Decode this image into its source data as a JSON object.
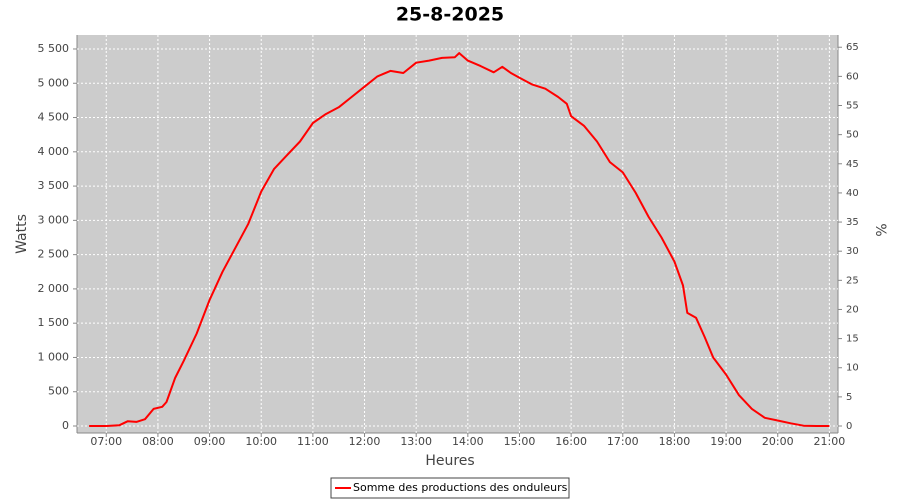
{
  "chart_data": {
    "type": "line",
    "title": "25-8-2025",
    "x_label": "Heures",
    "y_label": "Watts",
    "y2_label": "%",
    "x": [
      "06:40",
      "07:00",
      "07:15",
      "07:25",
      "07:35",
      "07:45",
      "07:55",
      "08:05",
      "08:10",
      "08:20",
      "08:30",
      "08:45",
      "09:00",
      "09:15",
      "09:30",
      "09:45",
      "10:00",
      "10:15",
      "10:30",
      "10:45",
      "11:00",
      "11:15",
      "11:30",
      "11:45",
      "12:00",
      "12:15",
      "12:30",
      "12:45",
      "13:00",
      "13:15",
      "13:30",
      "13:45",
      "13:50",
      "14:00",
      "14:15",
      "14:30",
      "14:40",
      "14:50",
      "15:00",
      "15:15",
      "15:30",
      "15:45",
      "15:55",
      "16:00",
      "16:15",
      "16:30",
      "16:45",
      "17:00",
      "17:15",
      "17:30",
      "17:45",
      "18:00",
      "18:10",
      "18:15",
      "18:25",
      "18:35",
      "18:45",
      "19:00",
      "19:15",
      "19:30",
      "19:45",
      "20:00",
      "20:15",
      "20:30",
      "20:45",
      "21:00"
    ],
    "series": [
      {
        "name": "Somme des productions des onduleurs",
        "color": "#ff0000",
        "values": [
          0,
          0,
          10,
          70,
          60,
          100,
          250,
          280,
          350,
          700,
          950,
          1350,
          1840,
          2250,
          2600,
          2950,
          3420,
          3750,
          3950,
          4150,
          4420,
          4550,
          4650,
          4800,
          4950,
          5100,
          5180,
          5150,
          5300,
          5330,
          5370,
          5380,
          5440,
          5330,
          5250,
          5160,
          5240,
          5150,
          5080,
          4980,
          4920,
          4800,
          4700,
          4520,
          4380,
          4150,
          3850,
          3700,
          3400,
          3050,
          2750,
          2400,
          2050,
          1650,
          1580,
          1300,
          1000,
          750,
          450,
          250,
          120,
          80,
          40,
          5,
          0,
          0
        ]
      }
    ],
    "xlim": [
      "06:26",
      "21:10"
    ],
    "xticks": [
      "07:00",
      "08:00",
      "09:00",
      "10:00",
      "11:00",
      "12:00",
      "13:00",
      "14:00",
      "15:00",
      "16:00",
      "17:00",
      "18:00",
      "19:00",
      "20:00",
      "21:00"
    ],
    "ylim": [
      -102,
      5704
    ],
    "yticks": [
      0,
      500,
      {
        "value": 1000,
        "label": "1 000"
      },
      {
        "value": 1500,
        "label": "1 500"
      },
      {
        "value": 2000,
        "label": "2 000"
      },
      {
        "value": 2500,
        "label": "2 500"
      },
      {
        "value": 3000,
        "label": "3 000"
      },
      {
        "value": 3500,
        "label": "3 500"
      },
      {
        "value": 4000,
        "label": "4 000"
      },
      {
        "value": 4500,
        "label": "4 500"
      },
      {
        "value": 5000,
        "label": "5 000"
      },
      {
        "value": 5500,
        "label": "5 500"
      }
    ],
    "y2lim": [
      -1.2,
      67.1
    ],
    "y2ticks": [
      0,
      5,
      10,
      15,
      20,
      25,
      30,
      35,
      40,
      45,
      50,
      55,
      60,
      65
    ],
    "grid": true,
    "legend": "bottom"
  }
}
